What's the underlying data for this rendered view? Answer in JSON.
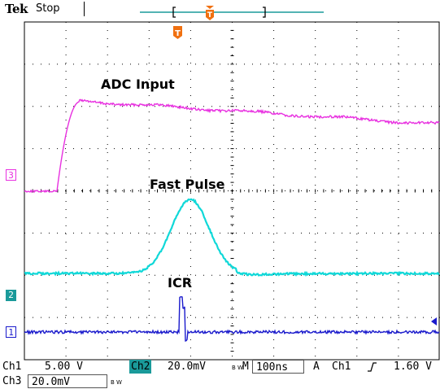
{
  "topbar": {
    "brand": "Tek",
    "state": "Stop"
  },
  "labels": {
    "adc": "ADC Input",
    "fast": "Fast Pulse",
    "icr": "ICR"
  },
  "markers": {
    "ch3": "3",
    "ch2": "2",
    "ch1": "1"
  },
  "status": {
    "ch1_name": "Ch1",
    "ch1_scale": "5.00 V",
    "ch2_name": "Ch2",
    "ch2_scale": "20.0mV",
    "bw": "B W",
    "time_prefix": "M",
    "timebase": "100ns",
    "trig_mode": "A",
    "trig_src": "Ch1",
    "trig_level": "1.60 V",
    "ch3_name": "Ch3",
    "ch3_scale": "20.0mV"
  },
  "colors": {
    "ch1": "#1a1acc",
    "ch2": "#10d8d8",
    "ch3": "#e830e0",
    "trigger": "#f07010",
    "grid": "#000000",
    "record": "#1a9a9a"
  },
  "icons": [
    "trigger-position-icon",
    "trigger-level-icon",
    "trigger-slope-icon"
  ]
}
